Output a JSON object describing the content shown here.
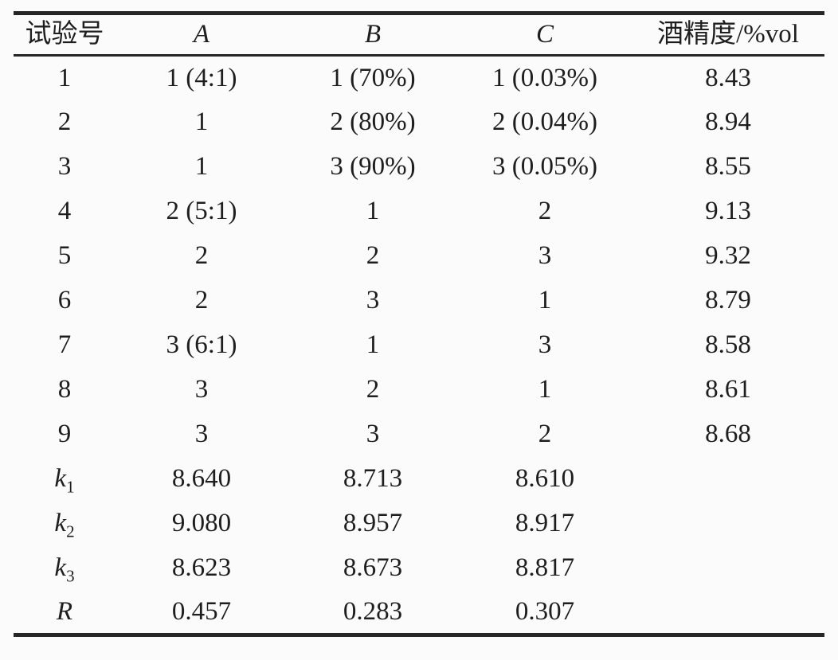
{
  "page": {
    "background_color": "#fbfbfb",
    "text_color": "#1e1e1e",
    "rule_color": "#262626"
  },
  "table": {
    "kind": "orthogonal-experiment-results",
    "headers": [
      {
        "text": "试验号",
        "italic": false
      },
      {
        "text": "A",
        "italic": true
      },
      {
        "text": "B",
        "italic": true
      },
      {
        "text": "C",
        "italic": true
      },
      {
        "text": "酒精度/%vol",
        "italic": false
      }
    ],
    "rows": [
      {
        "label": "1",
        "label_sub": "",
        "label_italic": false,
        "a": "1 (4:1)",
        "b": "1 (70%)",
        "c": "1 (0.03%)",
        "value": "8.43"
      },
      {
        "label": "2",
        "label_sub": "",
        "label_italic": false,
        "a": "1",
        "b": "2 (80%)",
        "c": "2 (0.04%)",
        "value": "8.94"
      },
      {
        "label": "3",
        "label_sub": "",
        "label_italic": false,
        "a": "1",
        "b": "3 (90%)",
        "c": "3 (0.05%)",
        "value": "8.55"
      },
      {
        "label": "4",
        "label_sub": "",
        "label_italic": false,
        "a": "2 (5:1)",
        "b": "1",
        "c": "2",
        "value": "9.13"
      },
      {
        "label": "5",
        "label_sub": "",
        "label_italic": false,
        "a": "2",
        "b": "2",
        "c": "3",
        "value": "9.32"
      },
      {
        "label": "6",
        "label_sub": "",
        "label_italic": false,
        "a": "2",
        "b": "3",
        "c": "1",
        "value": "8.79"
      },
      {
        "label": "7",
        "label_sub": "",
        "label_italic": false,
        "a": "3 (6:1)",
        "b": "1",
        "c": "3",
        "value": "8.58"
      },
      {
        "label": "8",
        "label_sub": "",
        "label_italic": false,
        "a": "3",
        "b": "2",
        "c": "1",
        "value": "8.61"
      },
      {
        "label": "9",
        "label_sub": "",
        "label_italic": false,
        "a": "3",
        "b": "3",
        "c": "2",
        "value": "8.68"
      },
      {
        "label": "k",
        "label_sub": "1",
        "label_italic": true,
        "a": "8.640",
        "b": "8.713",
        "c": "8.610",
        "value": ""
      },
      {
        "label": "k",
        "label_sub": "2",
        "label_italic": true,
        "a": "9.080",
        "b": "8.957",
        "c": "8.917",
        "value": ""
      },
      {
        "label": "k",
        "label_sub": "3",
        "label_italic": true,
        "a": "8.623",
        "b": "8.673",
        "c": "8.817",
        "value": ""
      },
      {
        "label": "R",
        "label_sub": "",
        "label_italic": true,
        "a": "0.457",
        "b": "0.283",
        "c": "0.307",
        "value": ""
      }
    ]
  }
}
